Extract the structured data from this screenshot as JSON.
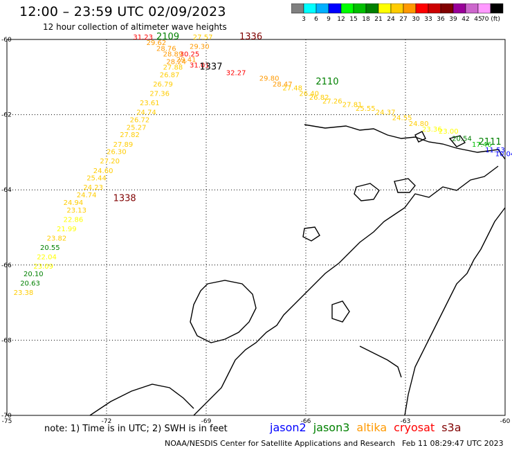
{
  "header": {
    "title": "12:00 – 23:59 UTC 02/09/2023",
    "subtitle": "12 hour collection of altimeter wave heights"
  },
  "colorbar": {
    "ticks": [
      "3",
      "6",
      "9",
      "12",
      "15",
      "18",
      "21",
      "24",
      "27",
      "30",
      "33",
      "36",
      "39",
      "42",
      "45",
      "70 (ft)"
    ],
    "colors": [
      "#808080",
      "#00ffff",
      "#00b0ff",
      "#0000ff",
      "#00ff00",
      "#00c000",
      "#008000",
      "#ffff00",
      "#ffcc00",
      "#ff9900",
      "#ff0000",
      "#cc0000",
      "#800000",
      "#990099",
      "#cc66cc",
      "#ff99ff",
      "#000000"
    ]
  },
  "axes": {
    "lat_labels": [
      "-60",
      "-62",
      "-64",
      "-66",
      "-68",
      "-70"
    ],
    "lon_labels": [
      "-75",
      "-72",
      "-69",
      "-66",
      "-63",
      "-60"
    ]
  },
  "passes": [
    {
      "label": "2109",
      "lon": -70.5,
      "lat": -60.0,
      "color": "#008000"
    },
    {
      "label": "1336",
      "lon": -68.0,
      "lat": -60.0,
      "color": "#800000"
    },
    {
      "label": "1337",
      "lon": -69.2,
      "lat": -60.8,
      "color": "#000000"
    },
    {
      "label": "2110",
      "lon": -65.7,
      "lat": -61.2,
      "color": "#008000"
    },
    {
      "label": "1338",
      "lon": -71.8,
      "lat": -64.3,
      "color": "#800000"
    },
    {
      "label": "2111",
      "lon": -60.8,
      "lat": -62.8,
      "color": "#008000"
    }
  ],
  "observations": [
    {
      "v": "31.23",
      "lon": -71.2,
      "lat": -60.0,
      "color": "#ff0000"
    },
    {
      "v": "29.62",
      "lon": -70.8,
      "lat": -60.15,
      "color": "#ff9900"
    },
    {
      "v": "28.76",
      "lon": -70.5,
      "lat": -60.3,
      "color": "#ff9900"
    },
    {
      "v": "28.89",
      "lon": -70.3,
      "lat": -60.45,
      "color": "#ff9900"
    },
    {
      "v": "28.24",
      "lon": -70.2,
      "lat": -60.65,
      "color": "#ff9900"
    },
    {
      "v": "27.88",
      "lon": -70.3,
      "lat": -60.8,
      "color": "#ffcc00"
    },
    {
      "v": "26.87",
      "lon": -70.4,
      "lat": -61.0,
      "color": "#ffcc00"
    },
    {
      "v": "26.79",
      "lon": -70.6,
      "lat": -61.25,
      "color": "#ffcc00"
    },
    {
      "v": "27.36",
      "lon": -70.7,
      "lat": -61.5,
      "color": "#ffcc00"
    },
    {
      "v": "23.61",
      "lon": -71.0,
      "lat": -61.75,
      "color": "#ffcc00"
    },
    {
      "v": "24.74",
      "lon": -71.1,
      "lat": -62.0,
      "color": "#ffcc00"
    },
    {
      "v": "26.72",
      "lon": -71.3,
      "lat": -62.2,
      "color": "#ffcc00"
    },
    {
      "v": "25.27",
      "lon": -71.4,
      "lat": -62.4,
      "color": "#ffcc00"
    },
    {
      "v": "27.82",
      "lon": -71.6,
      "lat": -62.6,
      "color": "#ffcc00"
    },
    {
      "v": "27.89",
      "lon": -71.8,
      "lat": -62.85,
      "color": "#ffcc00"
    },
    {
      "v": "26.30",
      "lon": -72.0,
      "lat": -63.05,
      "color": "#ffcc00"
    },
    {
      "v": "27.20",
      "lon": -72.2,
      "lat": -63.3,
      "color": "#ffcc00"
    },
    {
      "v": "24.60",
      "lon": -72.4,
      "lat": -63.55,
      "color": "#ffcc00"
    },
    {
      "v": "25.44",
      "lon": -72.6,
      "lat": -63.75,
      "color": "#ffcc00"
    },
    {
      "v": "24.23",
      "lon": -72.7,
      "lat": -64.0,
      "color": "#ffcc00"
    },
    {
      "v": "24.74",
      "lon": -72.9,
      "lat": -64.2,
      "color": "#ffcc00"
    },
    {
      "v": "24.94",
      "lon": -73.3,
      "lat": -64.4,
      "color": "#ffcc00"
    },
    {
      "v": "23.13",
      "lon": -73.2,
      "lat": -64.6,
      "color": "#ffcc00"
    },
    {
      "v": "22.86",
      "lon": -73.3,
      "lat": -64.85,
      "color": "#ffff00"
    },
    {
      "v": "21.99",
      "lon": -73.5,
      "lat": -65.1,
      "color": "#ffff00"
    },
    {
      "v": "23.82",
      "lon": -73.8,
      "lat": -65.35,
      "color": "#ffcc00"
    },
    {
      "v": "20.55",
      "lon": -74.0,
      "lat": -65.6,
      "color": "#008000"
    },
    {
      "v": "22.04",
      "lon": -74.1,
      "lat": -65.85,
      "color": "#ffff00"
    },
    {
      "v": "23.09",
      "lon": -74.2,
      "lat": -66.1,
      "color": "#ffff00"
    },
    {
      "v": "20.10",
      "lon": -74.5,
      "lat": -66.3,
      "color": "#008000"
    },
    {
      "v": "20.63",
      "lon": -74.6,
      "lat": -66.55,
      "color": "#008000"
    },
    {
      "v": "23.38",
      "lon": -74.8,
      "lat": -66.8,
      "color": "#ffcc00"
    },
    {
      "v": "27.57",
      "lon": -69.4,
      "lat": -60.0,
      "color": "#ffcc00"
    },
    {
      "v": "29.30",
      "lon": -69.5,
      "lat": -60.25,
      "color": "#ff9900"
    },
    {
      "v": "30.25",
      "lon": -69.8,
      "lat": -60.45,
      "color": "#ff0000"
    },
    {
      "v": "29.41",
      "lon": -69.9,
      "lat": -60.6,
      "color": "#ff9900"
    },
    {
      "v": "31.01",
      "lon": -69.5,
      "lat": -60.75,
      "color": "#ff0000"
    },
    {
      "v": "32.27",
      "lon": -68.4,
      "lat": -60.95,
      "color": "#ff0000"
    },
    {
      "v": "29.80",
      "lon": -67.4,
      "lat": -61.1,
      "color": "#ff9900"
    },
    {
      "v": "28.47",
      "lon": -67.0,
      "lat": -61.25,
      "color": "#ff9900"
    },
    {
      "v": "27.48",
      "lon": -66.7,
      "lat": -61.35,
      "color": "#ffcc00"
    },
    {
      "v": "26.40",
      "lon": -66.2,
      "lat": -61.5,
      "color": "#ffcc00"
    },
    {
      "v": "26.82",
      "lon": -65.9,
      "lat": -61.6,
      "color": "#ffcc00"
    },
    {
      "v": "27.26",
      "lon": -65.5,
      "lat": -61.7,
      "color": "#ffcc00"
    },
    {
      "v": "27.81",
      "lon": -64.9,
      "lat": -61.8,
      "color": "#ffcc00"
    },
    {
      "v": "25.55",
      "lon": -64.5,
      "lat": -61.9,
      "color": "#ffcc00"
    },
    {
      "v": "24.37",
      "lon": -63.9,
      "lat": -62.0,
      "color": "#ffcc00"
    },
    {
      "v": "24.55",
      "lon": -63.4,
      "lat": -62.15,
      "color": "#ffcc00"
    },
    {
      "v": "24.80",
      "lon": -62.9,
      "lat": -62.3,
      "color": "#ffcc00"
    },
    {
      "v": "23.36",
      "lon": -62.5,
      "lat": -62.45,
      "color": "#ffff00"
    },
    {
      "v": "23.00",
      "lon": -62.0,
      "lat": -62.5,
      "color": "#ffff00"
    },
    {
      "v": "20.54",
      "lon": -61.6,
      "lat": -62.7,
      "color": "#008000"
    },
    {
      "v": "17.46",
      "lon": -61.0,
      "lat": -62.85,
      "color": "#00c000"
    },
    {
      "v": "11.53",
      "lon": -60.6,
      "lat": -63.0,
      "color": "#0000ff"
    },
    {
      "v": "10.04",
      "lon": -60.3,
      "lat": -63.1,
      "color": "#0000ff"
    },
    {
      "v": "10.1",
      "lon": -59.7,
      "lat": -63.2,
      "color": "#0000ff"
    }
  ],
  "footer": {
    "note": "note: 1) Time is in UTC; 2) SWH is in feet",
    "credit": "NOAA/NESDIS Center for Satellite Applications and Research",
    "timestamp": "Feb 11 08:29:47 UTC 2023",
    "legend": [
      {
        "name": "jason2",
        "color": "#0000ff"
      },
      {
        "name": "jason3",
        "color": "#008000"
      },
      {
        "name": "altika",
        "color": "#ff9900"
      },
      {
        "name": "cryosat",
        "color": "#ff0000"
      },
      {
        "name": "s3a",
        "color": "#800000"
      }
    ]
  }
}
